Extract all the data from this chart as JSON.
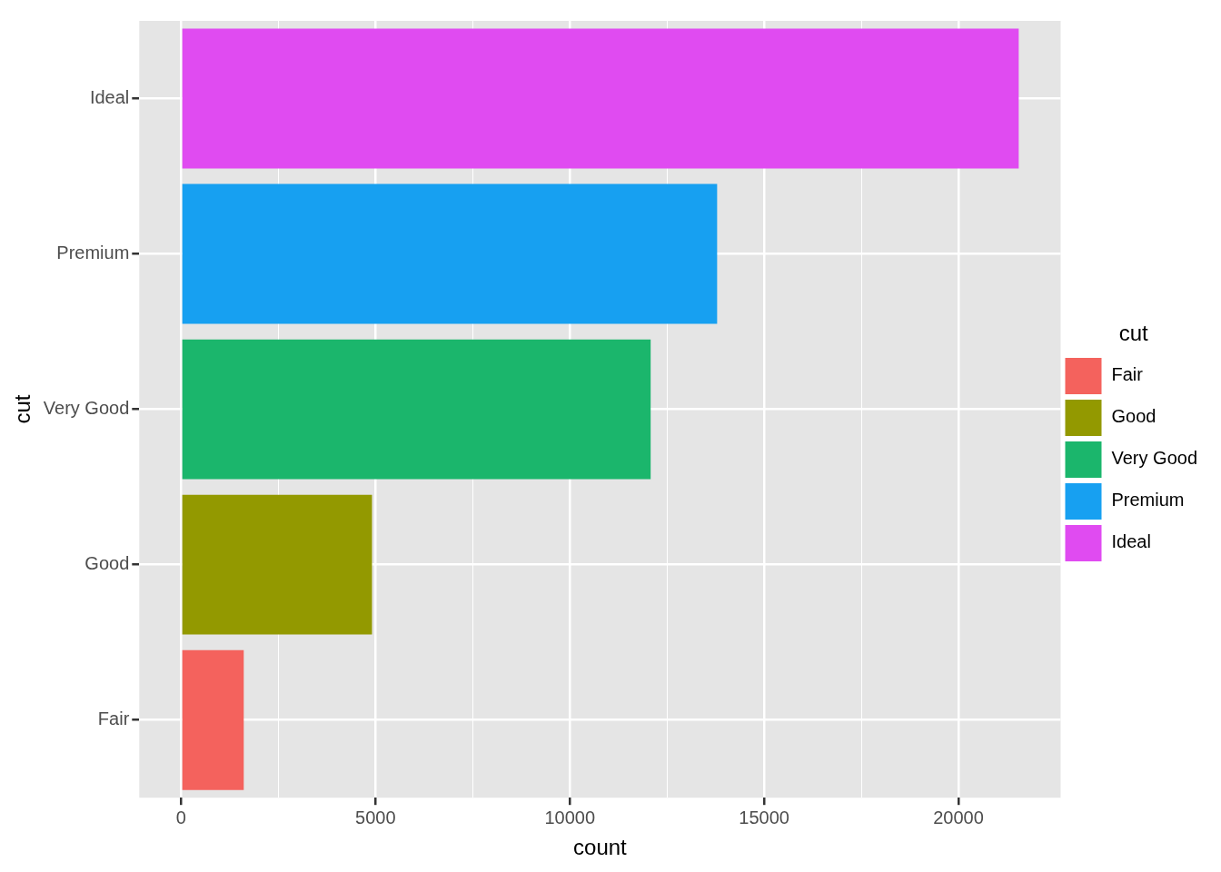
{
  "chart_data": {
    "type": "bar",
    "orientation": "horizontal",
    "stacked": true,
    "xlabel": "count",
    "ylabel": "cut",
    "legend_title": "cut",
    "legend": "right",
    "grid": true,
    "categories": [
      "Ideal",
      "Premium",
      "Very Good",
      "Good",
      "Fair"
    ],
    "series": [
      {
        "name": "Fair",
        "color": "#f4625d",
        "values": [
          null,
          null,
          null,
          null,
          1610
        ]
      },
      {
        "name": "Good",
        "color": "#939900",
        "values": [
          null,
          null,
          null,
          4910,
          null
        ]
      },
      {
        "name": "Very Good",
        "color": "#1bb66c",
        "values": [
          null,
          null,
          12080,
          null,
          null
        ]
      },
      {
        "name": "Premium",
        "color": "#17a0f1",
        "values": [
          null,
          13790,
          null,
          null,
          null
        ]
      },
      {
        "name": "Ideal",
        "color": "#e04bf1",
        "values": [
          21550,
          null,
          null,
          null,
          null
        ]
      }
    ],
    "xlim": [
      -1078,
      22629
    ],
    "xticks": [
      0,
      {
        "value": 2500,
        "label": null
      },
      5000,
      {
        "value": 7500,
        "label": null
      },
      10000,
      {
        "value": 12500,
        "label": null
      },
      15000,
      {
        "value": 17500,
        "label": null
      },
      20000
    ]
  }
}
